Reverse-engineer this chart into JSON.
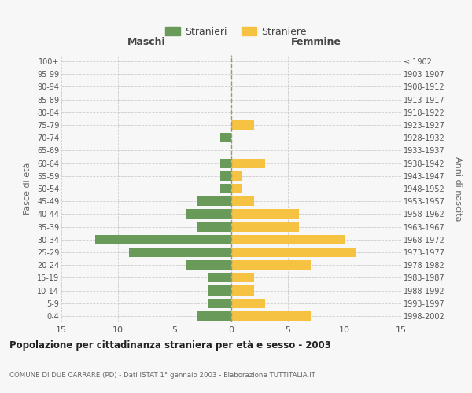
{
  "age_groups": [
    "0-4",
    "5-9",
    "10-14",
    "15-19",
    "20-24",
    "25-29",
    "30-34",
    "35-39",
    "40-44",
    "45-49",
    "50-54",
    "55-59",
    "60-64",
    "65-69",
    "70-74",
    "75-79",
    "80-84",
    "85-89",
    "90-94",
    "95-99",
    "100+"
  ],
  "birth_years": [
    "1998-2002",
    "1993-1997",
    "1988-1992",
    "1983-1987",
    "1978-1982",
    "1973-1977",
    "1968-1972",
    "1963-1967",
    "1958-1962",
    "1953-1957",
    "1948-1952",
    "1943-1947",
    "1938-1942",
    "1933-1937",
    "1928-1932",
    "1923-1927",
    "1918-1922",
    "1913-1917",
    "1908-1912",
    "1903-1907",
    "≤ 1902"
  ],
  "males": [
    3,
    2,
    2,
    2,
    4,
    9,
    12,
    3,
    4,
    3,
    1,
    1,
    1,
    0,
    1,
    0,
    0,
    0,
    0,
    0,
    0
  ],
  "females": [
    7,
    3,
    2,
    2,
    7,
    11,
    10,
    6,
    6,
    2,
    1,
    1,
    3,
    0,
    0,
    2,
    0,
    0,
    0,
    0,
    0
  ],
  "male_color": "#6a9a5a",
  "female_color": "#f5c242",
  "xlim": 15,
  "title": "Popolazione per cittadinanza straniera per età e sesso - 2003",
  "subtitle": "COMUNE DI DUE CARRARE (PD) - Dati ISTAT 1° gennaio 2003 - Elaborazione TUTTITALIA.IT",
  "ylabel_left": "Fasce di età",
  "ylabel_right": "Anni di nascita",
  "legend_male": "Stranieri",
  "legend_female": "Straniere",
  "maschi_label": "Maschi",
  "femmine_label": "Femmine",
  "bg_color": "#f7f7f7",
  "grid_color": "#cccccc"
}
